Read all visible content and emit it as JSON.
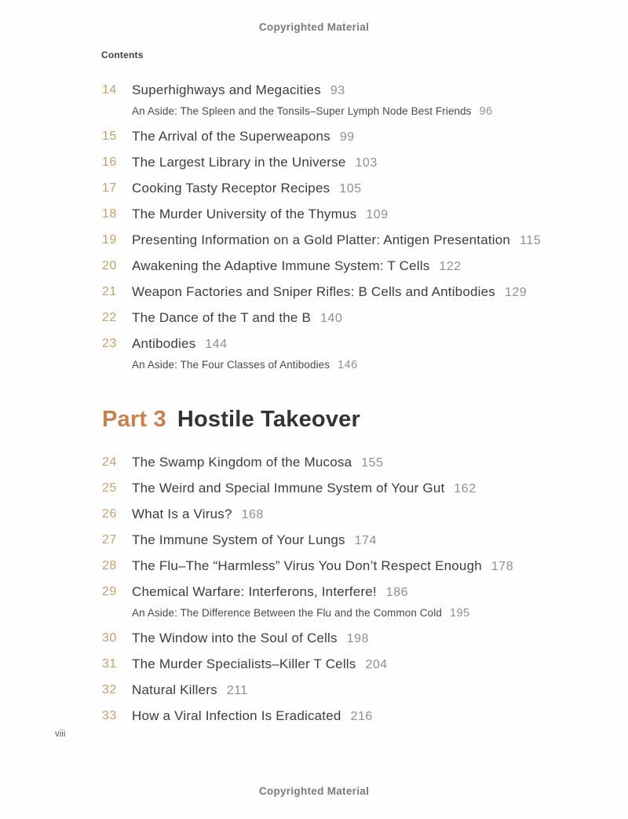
{
  "watermark_top": "Copyrighted Material",
  "watermark_bottom": "Copyrighted Material",
  "contents_label": "Contents",
  "folio": "viii",
  "colors": {
    "chapter_number": "#c7a06c",
    "part_label": "#c9824e",
    "chapter_title": "#3d3d3d",
    "page_number": "#8f8f8f",
    "aside_text": "#4a4a4a",
    "watermark": "#7b7b7b",
    "background": "#fefefe"
  },
  "sections": [
    {
      "chapters": [
        {
          "num": "14",
          "title": "Superhighways and Megacities",
          "page": "93",
          "aside_text": "An Aside: The Spleen and the Tonsils–Super Lymph Node Best Friends",
          "aside_page": "96"
        },
        {
          "num": "15",
          "title": "The Arrival of the Superweapons",
          "page": "99"
        },
        {
          "num": "16",
          "title": "The Largest Library in the Universe",
          "page": "103"
        },
        {
          "num": "17",
          "title": "Cooking Tasty Receptor Recipes",
          "page": "105"
        },
        {
          "num": "18",
          "title": "The Murder University of the Thymus",
          "page": "109"
        },
        {
          "num": "19",
          "title": "Presenting Information on a Gold Platter: Antigen Presentation",
          "page": "115"
        },
        {
          "num": "20",
          "title": "Awakening the Adaptive Immune System: T Cells",
          "page": "122"
        },
        {
          "num": "21",
          "title": "Weapon Factories and Sniper Rifles: B Cells and Antibodies",
          "page": "129"
        },
        {
          "num": "22",
          "title": "The Dance of the T and the B",
          "page": "140"
        },
        {
          "num": "23",
          "title": "Antibodies",
          "page": "144",
          "aside_text": "An Aside: The Four Classes of Antibodies",
          "aside_page": "146"
        }
      ]
    },
    {
      "part_label": "Part 3",
      "part_title": "Hostile Takeover",
      "chapters": [
        {
          "num": "24",
          "title": "The Swamp Kingdom of the Mucosa",
          "page": "155"
        },
        {
          "num": "25",
          "title": "The Weird and Special Immune System of Your Gut",
          "page": "162"
        },
        {
          "num": "26",
          "title": "What Is a Virus?",
          "page": "168"
        },
        {
          "num": "27",
          "title": "The Immune System of Your Lungs",
          "page": "174"
        },
        {
          "num": "28",
          "title": "The Flu–The “Harmless” Virus You Don’t Respect Enough",
          "page": "178"
        },
        {
          "num": "29",
          "title": "Chemical Warfare: Interferons, Interfere!",
          "page": "186",
          "aside_text": "An Aside: The Difference Between the Flu and the Common Cold",
          "aside_page": "195"
        },
        {
          "num": "30",
          "title": "The Window into the Soul of Cells",
          "page": "198"
        },
        {
          "num": "31",
          "title": "The Murder Specialists–Killer T Cells",
          "page": "204"
        },
        {
          "num": "32",
          "title": "Natural Killers",
          "page": "211"
        },
        {
          "num": "33",
          "title": "How a Viral Infection Is Eradicated",
          "page": "216"
        }
      ]
    }
  ]
}
